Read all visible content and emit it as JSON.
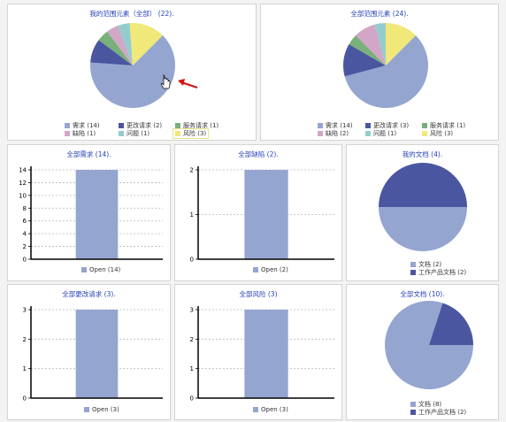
{
  "colors": {
    "pie_main": "#94a5d0",
    "pie_dark": "#4a56a0",
    "pie_green": "#7ab07a",
    "pie_pink": "#d2a6c6",
    "pie_teal": "#94ccce",
    "pie_yellow": "#f0e878",
    "bar": "#94a5d0",
    "title": "#2440b8"
  },
  "panels": {
    "my_scope": {
      "title": "我的范围元素（全部） (22).",
      "chart_data": {
        "type": "pie",
        "categories": [
          "需求",
          "更改请求",
          "服务请求",
          "缺陷",
          "问题",
          "风险"
        ],
        "values": [
          14,
          2,
          1,
          1,
          1,
          3
        ]
      },
      "legend": [
        "需求 (14)",
        "更改请求 (2)",
        "服务请求 (1)",
        "缺陷 (1)",
        "问题 (1)",
        "风险 (3)"
      ],
      "cursor_icon": "hand-pointer-icon",
      "arrow_icon": "red-arrow-icon"
    },
    "all_scope": {
      "title": "全部范围元素 (24).",
      "chart_data": {
        "type": "pie",
        "categories": [
          "需求",
          "更改请求",
          "服务请求",
          "缺陷",
          "问题",
          "风险"
        ],
        "values": [
          14,
          3,
          1,
          2,
          1,
          3
        ]
      },
      "legend": [
        "需求 (14)",
        "更改请求 (3)",
        "服务请求 (1)",
        "缺陷 (2)",
        "问题 (1)",
        "风险 (3)"
      ]
    },
    "all_req": {
      "title": "全部需求 (14).",
      "chart_data": {
        "type": "bar",
        "categories": [
          "Open"
        ],
        "values": [
          14
        ],
        "ylim": [
          0,
          14
        ],
        "yticks": [
          0,
          2,
          4,
          6,
          8,
          10,
          12,
          14
        ]
      },
      "legend": [
        "Open (14)"
      ]
    },
    "all_defect": {
      "title": "全部缺陷 (2).",
      "chart_data": {
        "type": "bar",
        "categories": [
          "Open"
        ],
        "values": [
          2
        ],
        "ylim": [
          0,
          2
        ],
        "yticks": [
          0,
          1,
          2
        ]
      },
      "legend": [
        "Open (2)"
      ]
    },
    "my_docs": {
      "title": "我的文档 (4).",
      "chart_data": {
        "type": "pie",
        "categories": [
          "文档",
          "工作产品文档"
        ],
        "values": [
          2,
          2
        ]
      },
      "legend": [
        "文档 (2)",
        "工作产品文档 (2)"
      ]
    },
    "all_cr": {
      "title": "全部更改请求 (3).",
      "chart_data": {
        "type": "bar",
        "categories": [
          "Open"
        ],
        "values": [
          3
        ],
        "ylim": [
          0,
          3
        ],
        "yticks": [
          0,
          1,
          2,
          3
        ]
      },
      "legend": [
        "Open (3)"
      ]
    },
    "all_risk": {
      "title": "全部风险 (3)",
      "chart_data": {
        "type": "bar",
        "categories": [
          "Open"
        ],
        "values": [
          3
        ],
        "ylim": [
          0,
          3
        ],
        "yticks": [
          0,
          1,
          2,
          3
        ]
      },
      "legend": [
        "Open (3)"
      ]
    },
    "all_docs": {
      "title": "全部文档 (10).",
      "chart_data": {
        "type": "pie",
        "categories": [
          "文档",
          "工作产品文档"
        ],
        "values": [
          8,
          2
        ]
      },
      "legend": [
        "文档 (8)",
        "工作产品文档 (2)"
      ]
    }
  }
}
